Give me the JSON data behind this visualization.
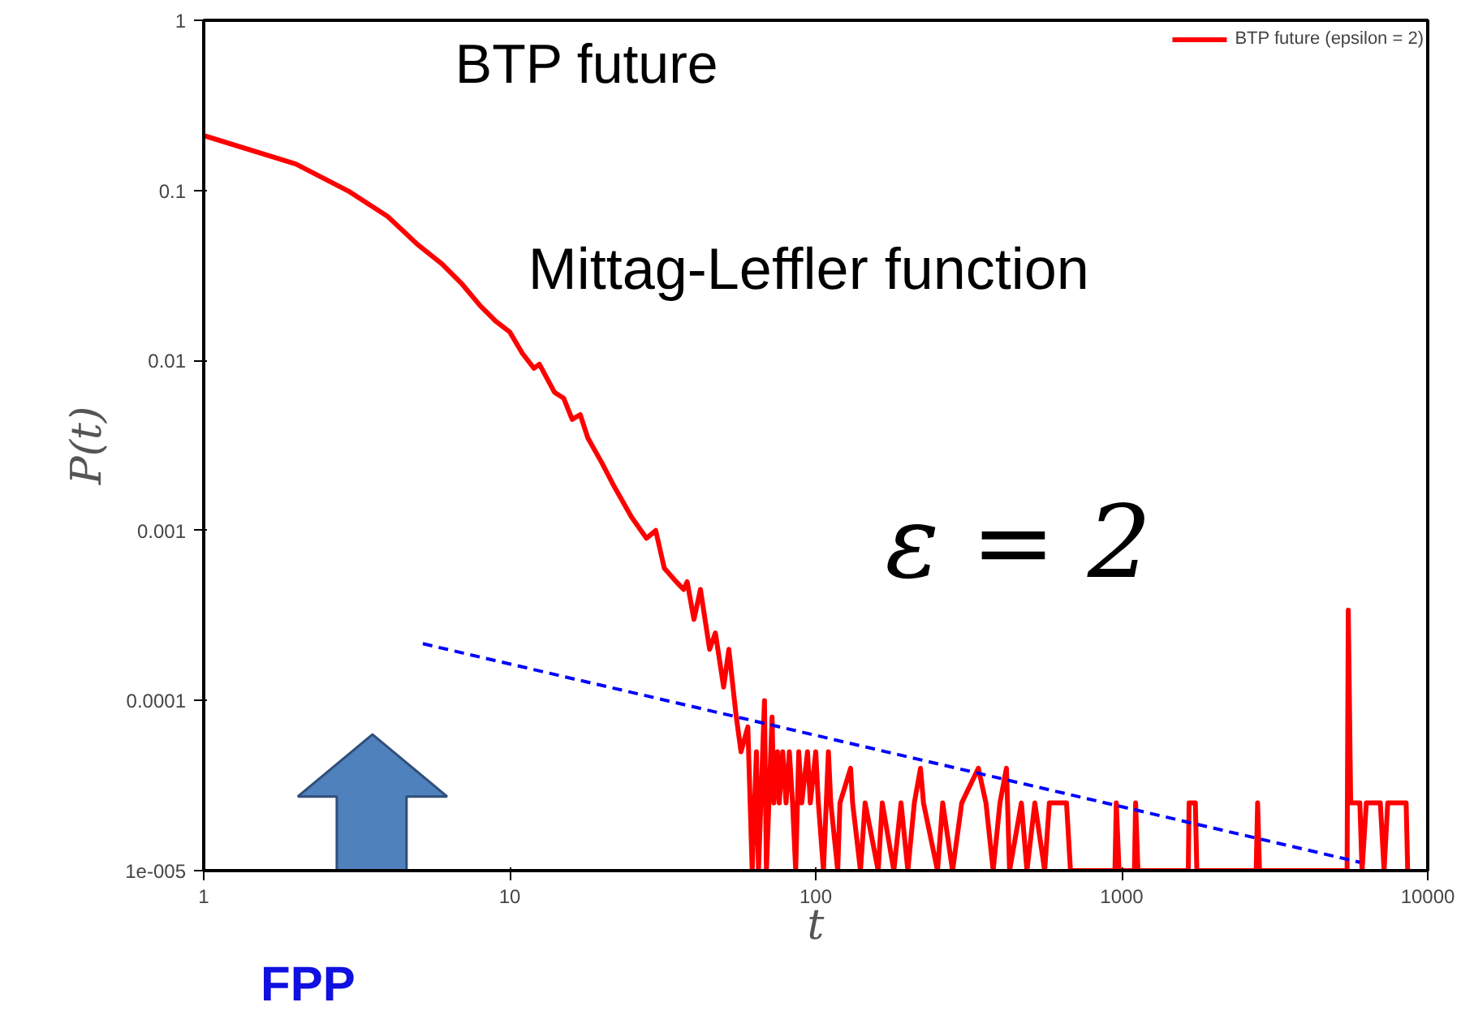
{
  "chart_data": {
    "type": "line",
    "xlabel": "t",
    "ylabel": "P(t)",
    "log": "xy",
    "grid": false,
    "legend": "top right",
    "marker": "none",
    "xlim": [
      1,
      10000
    ],
    "xticks": [
      1,
      10,
      100,
      1000,
      10000
    ],
    "ylim": [
      1e-05,
      1
    ],
    "yticks": [
      {
        "value": 1e-05,
        "label": "1e-005"
      },
      0.0001,
      0.001,
      0.01,
      0.1,
      1
    ],
    "annotations": [
      "BTP future",
      "Mittag-Leffler function",
      "ε = 2",
      "FPP"
    ],
    "series": [
      {
        "name": "BTP future (epsilon = 2)",
        "color": "#ff0000",
        "line_style": "solid",
        "x": [
          1,
          2,
          3,
          4,
          5,
          6,
          7,
          8,
          9,
          10,
          11,
          12,
          12.5,
          14,
          15,
          16,
          17,
          18,
          20,
          22,
          25,
          28,
          30,
          32,
          35,
          37,
          38,
          40,
          42,
          45,
          47,
          50,
          52,
          55,
          57,
          60,
          62,
          64,
          65,
          68,
          69,
          72,
          73,
          75,
          76,
          78,
          80,
          82,
          84,
          86,
          88,
          90,
          94,
          96,
          100,
          102,
          106,
          110,
          112,
          118,
          120,
          130,
          132,
          140,
          145,
          160,
          165,
          180,
          190,
          200,
          210,
          220,
          225,
          250,
          260,
          280,
          300,
          340,
          360,
          380,
          400,
          420,
          430,
          470,
          490,
          520,
          560,
          580,
          660,
          680,
          950,
          960,
          980,
          1100,
          1110,
          1130,
          1650,
          1660,
          1740,
          1760,
          2750,
          2780,
          2820,
          5450,
          5500,
          5600,
          6000,
          6100,
          6300,
          7000,
          7200,
          7400,
          8500,
          8600
        ],
        "values": [
          0.21,
          0.143,
          0.098,
          0.07,
          0.048,
          0.037,
          0.028,
          0.021,
          0.017,
          0.0147,
          0.011,
          0.009,
          0.0095,
          0.0065,
          0.006,
          0.0045,
          0.0048,
          0.0035,
          0.0025,
          0.0018,
          0.0012,
          0.0009,
          0.001,
          0.0006,
          0.0005,
          0.00045,
          0.0005,
          0.0003,
          0.00045,
          0.0002,
          0.00025,
          0.00012,
          0.0002,
          8e-05,
          5e-05,
          7e-05,
          1e-05,
          5e-05,
          1e-05,
          0.0001,
          1e-05,
          8e-05,
          2.5e-05,
          5e-05,
          2.5e-05,
          5e-05,
          2.5e-05,
          5e-05,
          2.5e-05,
          1e-05,
          5e-05,
          2.5e-05,
          5e-05,
          2.5e-05,
          5e-05,
          2.5e-05,
          1e-05,
          5e-05,
          2.5e-05,
          1e-05,
          2.5e-05,
          4e-05,
          2.5e-05,
          1e-05,
          2.5e-05,
          1e-05,
          2.5e-05,
          1e-05,
          2.5e-05,
          1e-05,
          2.5e-05,
          4e-05,
          2.5e-05,
          1e-05,
          2.5e-05,
          1e-05,
          2.5e-05,
          4e-05,
          2.5e-05,
          1e-05,
          2.5e-05,
          4e-05,
          1e-05,
          2.5e-05,
          1e-05,
          2.5e-05,
          1e-05,
          2.5e-05,
          2.5e-05,
          1e-05,
          1e-05,
          2.5e-05,
          1e-05,
          1e-05,
          2.5e-05,
          1e-05,
          1e-05,
          2.5e-05,
          2.5e-05,
          1e-05,
          1e-05,
          2.5e-05,
          1e-05,
          1e-05,
          0.00034,
          2.5e-05,
          2.5e-05,
          1e-05,
          2.5e-05,
          2.5e-05,
          1e-05,
          2.5e-05,
          2.5e-05,
          1e-05
        ]
      },
      {
        "type": "line",
        "color": "#0000ff",
        "line_style": "dashed",
        "x": [
          5.2,
          6000
        ],
        "values": [
          0.000216,
          1.12e-05
        ]
      }
    ]
  }
}
